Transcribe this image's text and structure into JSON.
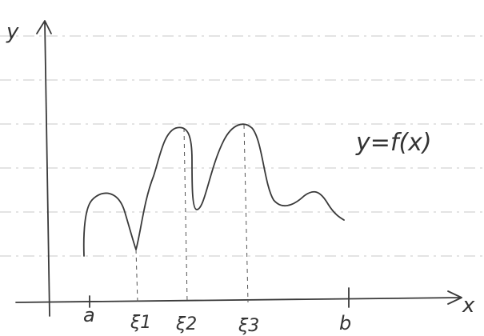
{
  "axes": {
    "y": "y",
    "x": "x"
  },
  "function_label": "y=f(x)",
  "points": [
    "a",
    "ξ1",
    "ξ2",
    "ξ3",
    "b"
  ]
}
